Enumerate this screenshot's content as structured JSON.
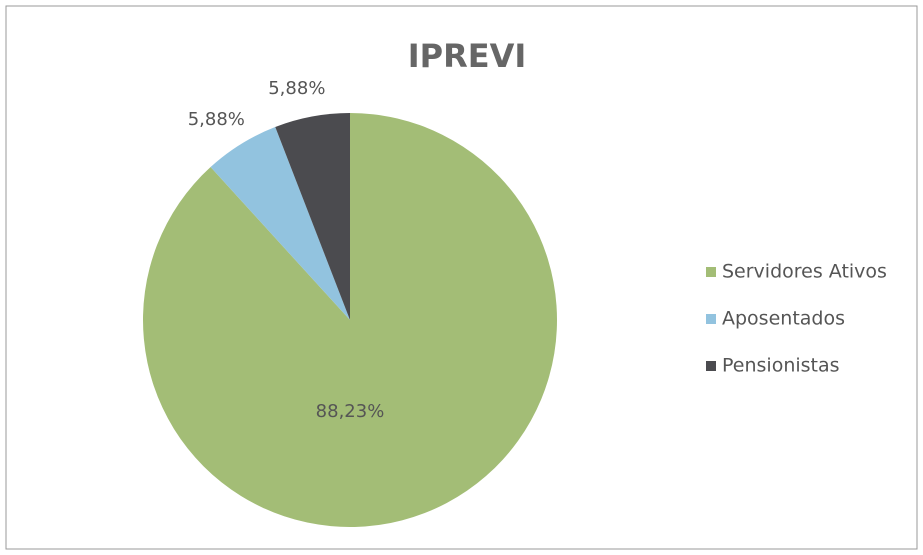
{
  "chart_data": {
    "type": "pie",
    "title": "IPREVI",
    "categories": [
      "Servidores Ativos",
      "Aposentados",
      "Pensionistas"
    ],
    "values": [
      88.23,
      5.88,
      5.88
    ],
    "value_labels": [
      "88,23%",
      "5,88%",
      "5,88%"
    ],
    "colors": [
      "#a3bd76",
      "#92c3df",
      "#4b4b4f"
    ],
    "legend": "right"
  }
}
